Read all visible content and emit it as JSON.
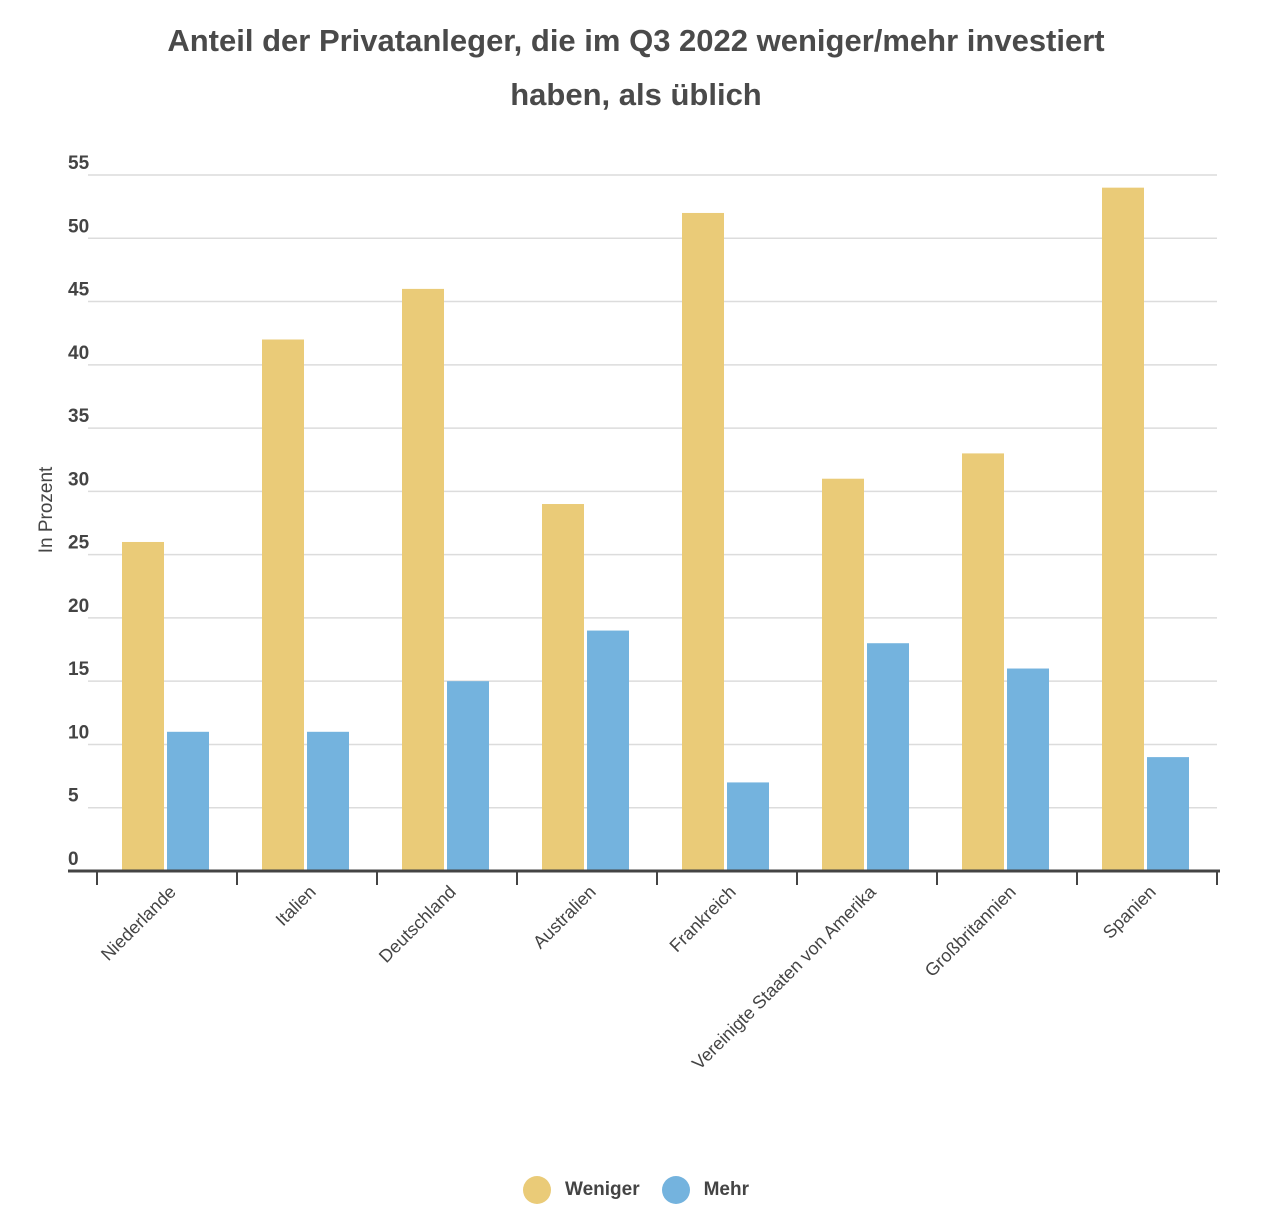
{
  "chart_data": {
    "type": "bar",
    "title_line1": "Anteil der Privatanleger, die im Q3 2022 weniger/mehr investiert",
    "title_line2": "haben, als üblich",
    "ylabel": "In Prozent",
    "xlabel": "",
    "ylim": [
      0,
      55
    ],
    "yticks": [
      0,
      5,
      10,
      15,
      20,
      25,
      30,
      35,
      40,
      45,
      50,
      55
    ],
    "grid": true,
    "legend_position": "bottom-center",
    "categories": [
      "Niederlande",
      "Italien",
      "Deutschland",
      "Australien",
      "Frankreich",
      "Vereinigte Staaten von Amerika",
      "Großbritannien",
      "Spanien"
    ],
    "series": [
      {
        "name": "Weniger",
        "color": "#EACB78",
        "values": [
          26,
          42,
          46,
          29,
          52,
          31,
          33,
          54
        ]
      },
      {
        "name": "Mehr",
        "color": "#74B3DE",
        "values": [
          11,
          11,
          15,
          19,
          7,
          18,
          16,
          9
        ]
      }
    ]
  }
}
